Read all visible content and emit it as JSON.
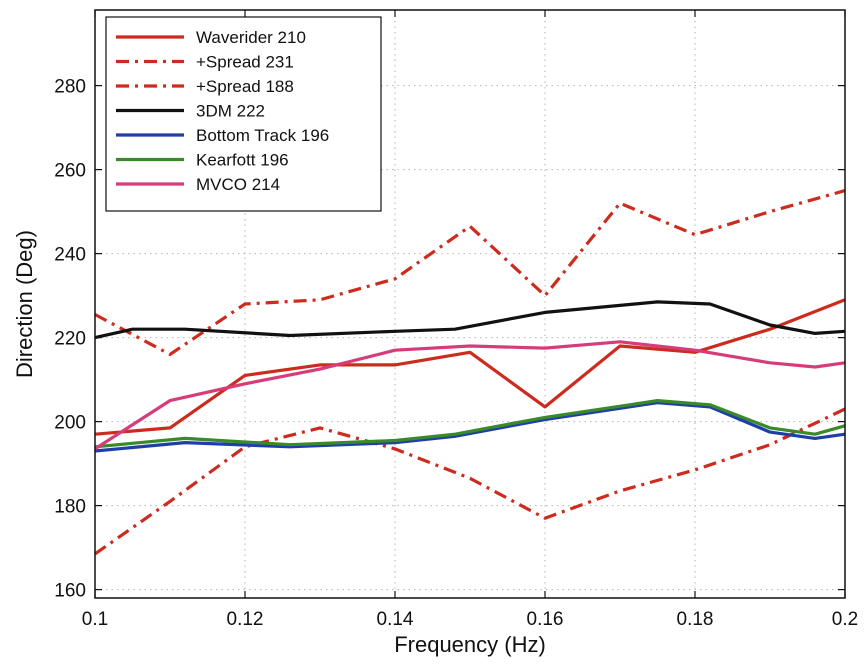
{
  "chart_data": {
    "type": "line",
    "title": "",
    "xlabel": "Frequency (Hz)",
    "ylabel": "Direction (Deg)",
    "xlim": [
      0.1,
      0.2
    ],
    "ylim": [
      158,
      298
    ],
    "xticks": [
      0.1,
      0.12,
      0.14,
      0.16,
      0.18,
      0.2
    ],
    "xtick_labels": [
      "0.1",
      "0.12",
      "0.14",
      "0.16",
      "0.18",
      "0.2"
    ],
    "yticks": [
      160,
      180,
      200,
      220,
      240,
      260,
      280
    ],
    "ytick_labels": [
      "160",
      "180",
      "200",
      "220",
      "240",
      "260",
      "280"
    ],
    "grid": true,
    "legend_position": "top-left",
    "series": [
      {
        "name": "Waverider 210",
        "color": "#cc2b1e",
        "dash": "solid",
        "x": [
          0.1,
          0.11,
          0.12,
          0.13,
          0.14,
          0.15,
          0.16,
          0.17,
          0.18,
          0.19,
          0.2
        ],
        "y": [
          197,
          198.5,
          211,
          213.5,
          213.5,
          216.5,
          203.5,
          218,
          216.5,
          222,
          229
        ]
      },
      {
        "name": "+Spread 231",
        "color": "#cc2b1e",
        "dash": "dashdot",
        "x": [
          0.1,
          0.11,
          0.12,
          0.13,
          0.14,
          0.15,
          0.16,
          0.17,
          0.18,
          0.19,
          0.2
        ],
        "y": [
          225.5,
          216,
          228,
          229,
          234,
          246.5,
          230,
          252,
          244.5,
          250,
          255
        ]
      },
      {
        "name": "+Spread 188",
        "color": "#cc2b1e",
        "dash": "dashdot",
        "x": [
          0.1,
          0.11,
          0.12,
          0.13,
          0.14,
          0.15,
          0.16,
          0.17,
          0.18,
          0.19,
          0.2
        ],
        "y": [
          168.5,
          181,
          194,
          198.5,
          193.5,
          186.5,
          177,
          183.5,
          188.5,
          194.5,
          203
        ]
      },
      {
        "name": "3DM 222",
        "color": "#111111",
        "dash": "solid",
        "x": [
          0.1,
          0.105,
          0.112,
          0.126,
          0.14,
          0.148,
          0.16,
          0.175,
          0.182,
          0.19,
          0.196,
          0.2
        ],
        "y": [
          220,
          222,
          222,
          220.5,
          221.5,
          222,
          226,
          228.5,
          228,
          223,
          221,
          221.5
        ]
      },
      {
        "name": "Bottom Track 196",
        "color": "#1f3fa8",
        "dash": "solid",
        "x": [
          0.1,
          0.112,
          0.126,
          0.14,
          0.148,
          0.16,
          0.175,
          0.182,
          0.19,
          0.196,
          0.2
        ],
        "y": [
          193,
          195,
          194,
          195,
          196.5,
          200.5,
          204.5,
          203.5,
          197.5,
          196,
          197
        ]
      },
      {
        "name": "Kearfott 196",
        "color": "#3a8a2a",
        "dash": "solid",
        "x": [
          0.1,
          0.112,
          0.126,
          0.14,
          0.148,
          0.16,
          0.175,
          0.182,
          0.19,
          0.196,
          0.2
        ],
        "y": [
          194,
          196,
          194.5,
          195.5,
          197,
          201,
          205,
          204,
          198.5,
          197,
          199
        ]
      },
      {
        "name": "MVCO 214",
        "color": "#d63c7a",
        "dash": "solid",
        "x": [
          0.1,
          0.11,
          0.12,
          0.13,
          0.14,
          0.15,
          0.16,
          0.17,
          0.18,
          0.19,
          0.196,
          0.2
        ],
        "y": [
          193.5,
          205,
          209,
          212.5,
          217,
          218,
          217.5,
          219,
          217,
          214,
          213,
          214
        ]
      }
    ]
  }
}
